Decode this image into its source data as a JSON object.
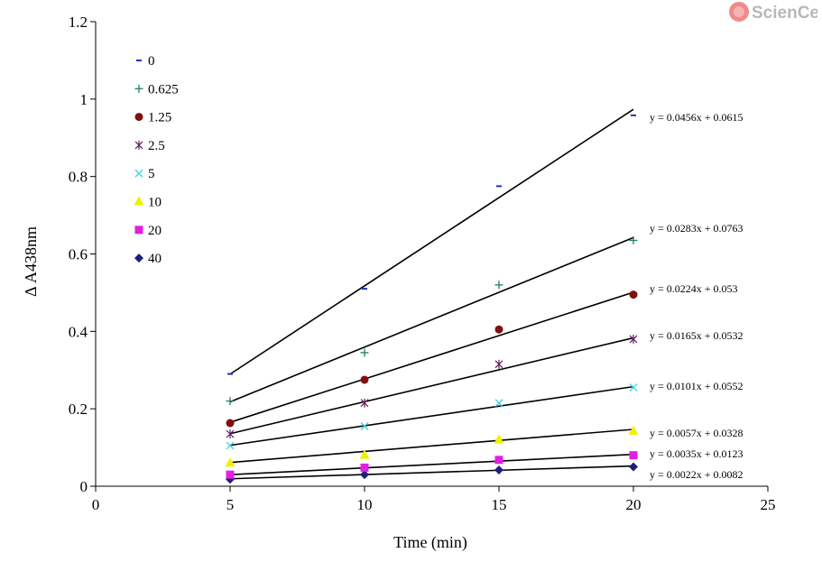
{
  "logo": {
    "text": "ScienCell"
  },
  "chart_data": {
    "type": "scatter",
    "title": "",
    "xlabel": "Time (min)",
    "ylabel": "Δ A438nm",
    "xlim": [
      0,
      25
    ],
    "ylim": [
      0,
      1.2
    ],
    "x_ticks": [
      0,
      5,
      10,
      15,
      20,
      25
    ],
    "y_ticks": [
      0,
      0.2,
      0.4,
      0.6,
      0.8,
      1,
      1.2
    ],
    "x_tick_labels": [
      "0",
      "5",
      "10",
      "15",
      "20",
      "25"
    ],
    "y_tick_labels": [
      "0",
      "0.2",
      "0.4",
      "0.6",
      "0.8",
      "1",
      "1.2"
    ],
    "grid": false,
    "legend_position": "top-left",
    "x": [
      5,
      10,
      15,
      20
    ],
    "series": [
      {
        "name": "40",
        "marker": "diamond",
        "color": "#1f1f7a",
        "values": [
          0.018,
          0.03,
          0.042,
          0.05
        ],
        "trendline": {
          "slope": 0.0022,
          "intercept": 0.0082,
          "label": "y = 0.0022x + 0.0082"
        }
      },
      {
        "name": "20",
        "marker": "square",
        "color": "#e020e0",
        "values": [
          0.03,
          0.048,
          0.068,
          0.08
        ],
        "trendline": {
          "slope": 0.0035,
          "intercept": 0.0123,
          "label": "y = 0.0035x + 0.0123"
        }
      },
      {
        "name": "10",
        "marker": "triangle",
        "color": "#f0f000",
        "values": [
          0.06,
          0.08,
          0.12,
          0.142
        ],
        "trendline": {
          "slope": 0.0057,
          "intercept": 0.0328,
          "label": "y = 0.0057x + 0.0328"
        }
      },
      {
        "name": "5",
        "marker": "x",
        "color": "#40d0e0",
        "values": [
          0.105,
          0.155,
          0.215,
          0.255
        ],
        "trendline": {
          "slope": 0.0101,
          "intercept": 0.0552,
          "label": "y = 0.0101x + 0.0552"
        }
      },
      {
        "name": "2.5",
        "marker": "star",
        "color": "#602060",
        "values": [
          0.135,
          0.215,
          0.315,
          0.38
        ],
        "trendline": {
          "slope": 0.0165,
          "intercept": 0.0532,
          "label": "y = 0.0165x + 0.0532"
        }
      },
      {
        "name": "1.25",
        "marker": "circle",
        "color": "#801010",
        "values": [
          0.163,
          0.275,
          0.405,
          0.495
        ],
        "trendline": {
          "slope": 0.0224,
          "intercept": 0.053,
          "label": "y = 0.0224x + 0.053"
        }
      },
      {
        "name": "0.625",
        "marker": "plus",
        "color": "#208060",
        "values": [
          0.22,
          0.345,
          0.52,
          0.635
        ],
        "trendline": {
          "slope": 0.0283,
          "intercept": 0.0763,
          "label": "y = 0.0283x + 0.0763"
        }
      },
      {
        "name": "0",
        "marker": "dash",
        "color": "#2030c0",
        "values": [
          0.29,
          0.51,
          0.775,
          0.958
        ],
        "trendline": {
          "slope": 0.0456,
          "intercept": 0.0615,
          "label": "y = 0.0456x + 0.0615"
        }
      }
    ]
  }
}
